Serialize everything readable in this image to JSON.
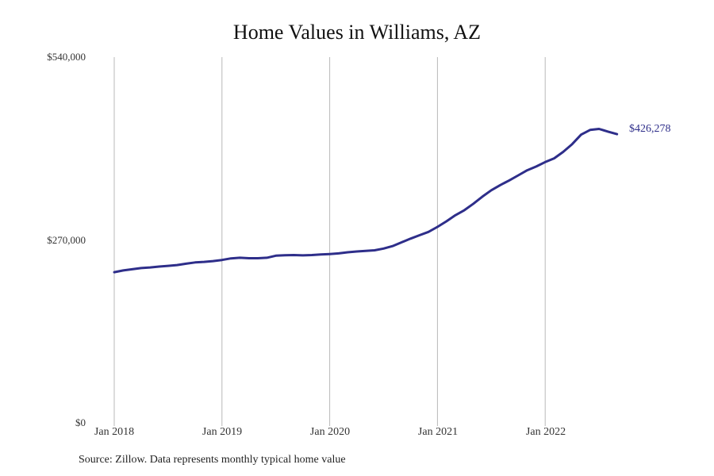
{
  "chart_data": {
    "type": "line",
    "title": "Home Values in Williams, AZ",
    "xlabel": "",
    "ylabel": "",
    "ylim": [
      0,
      540000
    ],
    "yticks": [
      "$0",
      "$270,000",
      "$540,000"
    ],
    "xticks": [
      "Jan 2018",
      "Jan 2019",
      "Jan 2020",
      "Jan 2021",
      "Jan 2022"
    ],
    "grid": {
      "vertical": true,
      "horizontal": false
    },
    "legend": null,
    "series": [
      {
        "name": "Typical home value",
        "color": "#2e2e8a",
        "x": [
          "2018-01",
          "2018-02",
          "2018-03",
          "2018-04",
          "2018-05",
          "2018-06",
          "2018-07",
          "2018-08",
          "2018-09",
          "2018-10",
          "2018-11",
          "2018-12",
          "2019-01",
          "2019-02",
          "2019-03",
          "2019-04",
          "2019-05",
          "2019-06",
          "2019-07",
          "2019-08",
          "2019-09",
          "2019-10",
          "2019-11",
          "2019-12",
          "2020-01",
          "2020-02",
          "2020-03",
          "2020-04",
          "2020-05",
          "2020-06",
          "2020-07",
          "2020-08",
          "2020-09",
          "2020-10",
          "2020-11",
          "2020-12",
          "2021-01",
          "2021-02",
          "2021-03",
          "2021-04",
          "2021-05",
          "2021-06",
          "2021-07",
          "2021-08",
          "2021-09",
          "2021-10",
          "2021-11",
          "2021-12",
          "2022-01",
          "2022-02",
          "2022-03",
          "2022-04",
          "2022-05",
          "2022-06",
          "2022-07",
          "2022-08",
          "2022-09"
        ],
        "values": [
          222500,
          225000,
          226800,
          228500,
          229500,
          230800,
          231800,
          233000,
          235000,
          236800,
          237700,
          238900,
          240500,
          242800,
          243800,
          243000,
          243000,
          243800,
          246800,
          247500,
          247800,
          247300,
          247800,
          248600,
          249300,
          250200,
          251800,
          253000,
          254000,
          254800,
          257300,
          261000,
          266500,
          272000,
          277000,
          282000,
          289300,
          297500,
          306500,
          314000,
          323500,
          334000,
          343500,
          351000,
          358000,
          365500,
          373000,
          378500,
          385000,
          390500,
          400000,
          411500,
          425500,
          432500,
          434000,
          430000,
          426278
        ]
      }
    ],
    "end_label": "$426,278",
    "source": "Source: Zillow. Data represents monthly typical home value"
  }
}
